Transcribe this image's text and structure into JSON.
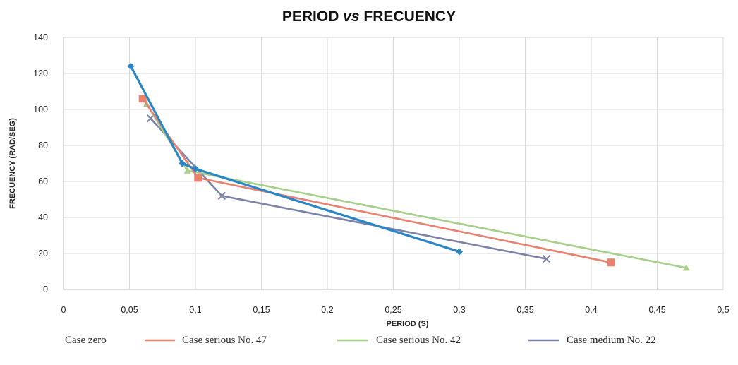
{
  "chart_data": {
    "type": "line",
    "title_main": "PERIOD ",
    "title_vs": "vs",
    "title_rest": " FRECUENCY",
    "xlabel": "PERIOD (S)",
    "ylabel": "FRECUENCY (RAD/SEG)",
    "xlim": [
      0,
      0.5
    ],
    "ylim": [
      0,
      140
    ],
    "xticks": [
      0,
      0.05,
      0.1,
      0.15,
      0.2,
      0.25,
      0.3,
      0.35,
      0.4,
      0.45,
      0.5
    ],
    "xtick_labels": [
      "0",
      "0,05",
      "0,1",
      "0,15",
      "0,2",
      "0,25",
      "0,3",
      "0,35",
      "0,4",
      "0,45",
      "0,5"
    ],
    "yticks": [
      0,
      20,
      40,
      60,
      80,
      100,
      120,
      140
    ],
    "ytick_labels": [
      "0",
      "20",
      "40",
      "60",
      "80",
      "100",
      "120",
      "140"
    ],
    "grid": true,
    "legend_position": "bottom",
    "series": [
      {
        "name": "Case zero",
        "color": "#2b86c5",
        "marker": "diamond",
        "points": [
          [
            0.051,
            124
          ],
          [
            0.09,
            70
          ],
          [
            0.1,
            67
          ],
          [
            0.3,
            21
          ]
        ]
      },
      {
        "name": "Case serious No. 47",
        "color": "#e8826f",
        "marker": "square",
        "points": [
          [
            0.06,
            106
          ],
          [
            0.102,
            62
          ],
          [
            0.415,
            15
          ]
        ]
      },
      {
        "name": "Case serious No. 42",
        "color": "#a6cf8a",
        "marker": "triangle",
        "points": [
          [
            0.063,
            103
          ],
          [
            0.094,
            66
          ],
          [
            0.472,
            12
          ]
        ]
      },
      {
        "name": "Case medium No. 22",
        "color": "#7d83a8",
        "marker": "cross",
        "points": [
          [
            0.066,
            95
          ],
          [
            0.12,
            52
          ],
          [
            0.366,
            17
          ]
        ]
      }
    ]
  }
}
